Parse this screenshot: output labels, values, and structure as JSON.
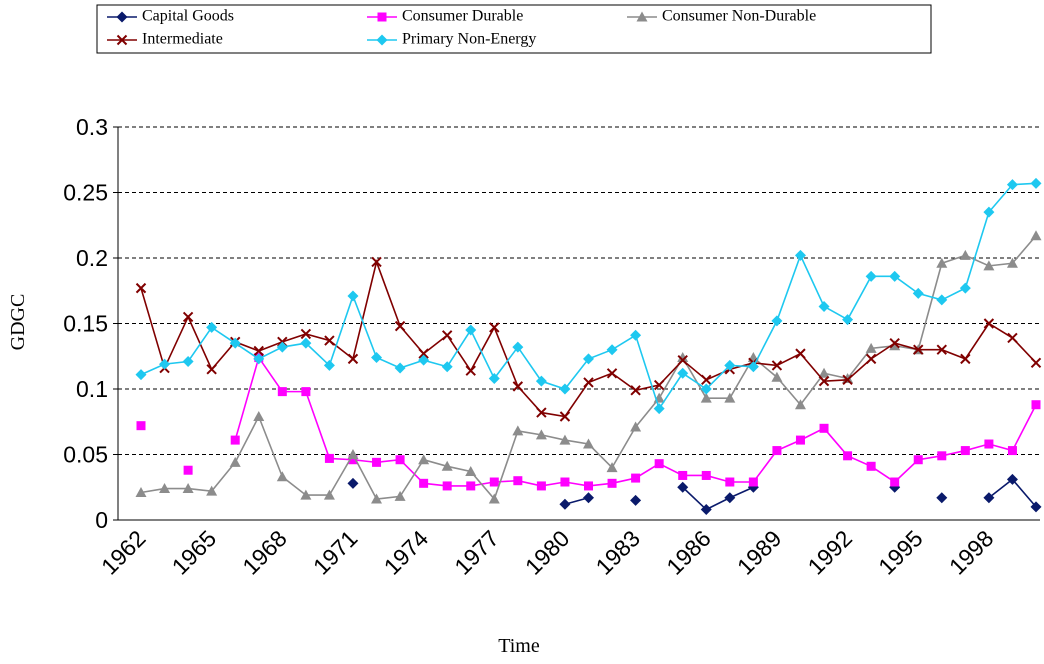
{
  "chart_data": {
    "type": "line",
    "x_label": "Time",
    "y_label": "GDGC",
    "categories": [
      "1962",
      null,
      null,
      "1965",
      null,
      null,
      "1968",
      null,
      null,
      "1971",
      null,
      null,
      "1974",
      null,
      null,
      "1977",
      null,
      null,
      "1980",
      null,
      null,
      "1983",
      null,
      null,
      "1986",
      null,
      null,
      "1989",
      null,
      null,
      "1992",
      null,
      null,
      "1995",
      null,
      null,
      "1998",
      null,
      null
    ],
    "ylim": [
      0,
      0.3
    ],
    "yticks": [
      0,
      0.05,
      0.1,
      0.15,
      0.2,
      0.25,
      0.3
    ],
    "grid": true,
    "series": [
      {
        "name": "Capital Goods",
        "color": "#0a1a6b",
        "marker": "diamond",
        "values": [
          null,
          null,
          null,
          null,
          null,
          null,
          null,
          null,
          null,
          0.028,
          null,
          null,
          null,
          null,
          null,
          null,
          null,
          null,
          0.012,
          0.017,
          null,
          0.015,
          null,
          0.025,
          0.008,
          0.017,
          0.025,
          null,
          null,
          null,
          null,
          null,
          0.025,
          null,
          0.017,
          null,
          0.017,
          0.031,
          0.01
        ]
      },
      {
        "name": "Consumer Durable",
        "color": "#ff00ff",
        "marker": "square",
        "values": [
          0.072,
          null,
          0.038,
          null,
          0.061,
          0.124,
          0.098,
          0.098,
          0.047,
          0.046,
          0.044,
          0.046,
          0.028,
          0.026,
          0.026,
          0.029,
          0.03,
          0.026,
          0.029,
          0.026,
          0.028,
          0.032,
          0.043,
          0.034,
          0.034,
          0.029,
          0.029,
          0.053,
          0.061,
          0.07,
          0.049,
          0.041,
          0.029,
          0.046,
          0.049,
          0.053,
          0.058,
          0.053,
          0.088
        ]
      },
      {
        "name": "Consumer Non-Durable",
        "color": "#8c8c8c",
        "marker": "triangle",
        "values": [
          0.021,
          0.024,
          0.024,
          0.022,
          0.044,
          0.079,
          0.033,
          0.019,
          0.019,
          0.05,
          0.016,
          0.018,
          0.046,
          0.041,
          0.037,
          0.016,
          0.068,
          0.065,
          0.061,
          0.058,
          0.04,
          0.071,
          0.093,
          0.124,
          0.093,
          0.093,
          0.124,
          0.109,
          0.088,
          0.112,
          0.108,
          0.131,
          0.133,
          0.13,
          0.196,
          0.202,
          0.194,
          0.196,
          0.217
        ]
      },
      {
        "name": "Intermediate",
        "color": "#800000",
        "marker": "x",
        "values": [
          0.177,
          0.116,
          0.155,
          0.115,
          0.136,
          0.129,
          0.136,
          0.142,
          0.137,
          0.123,
          0.197,
          0.148,
          0.127,
          0.141,
          0.114,
          0.147,
          0.102,
          0.082,
          0.079,
          0.105,
          0.112,
          0.099,
          0.103,
          0.122,
          0.107,
          0.115,
          0.12,
          0.118,
          0.127,
          0.106,
          0.107,
          0.123,
          0.135,
          0.13,
          0.13,
          0.123,
          0.15,
          0.139,
          0.12
        ]
      },
      {
        "name": "Primary Non-Energy",
        "color": "#1ec8f0",
        "marker": "diamond",
        "values": [
          0.111,
          0.119,
          0.121,
          0.147,
          0.135,
          0.123,
          0.132,
          0.135,
          0.118,
          0.171,
          0.124,
          0.116,
          0.122,
          0.117,
          0.145,
          0.108,
          0.132,
          0.106,
          0.1,
          0.123,
          0.13,
          0.141,
          0.085,
          0.112,
          0.1,
          0.118,
          0.117,
          0.152,
          0.202,
          0.163,
          0.153,
          0.186,
          0.186,
          0.173,
          0.168,
          0.177,
          0.235,
          0.256,
          0.257
        ]
      }
    ]
  }
}
